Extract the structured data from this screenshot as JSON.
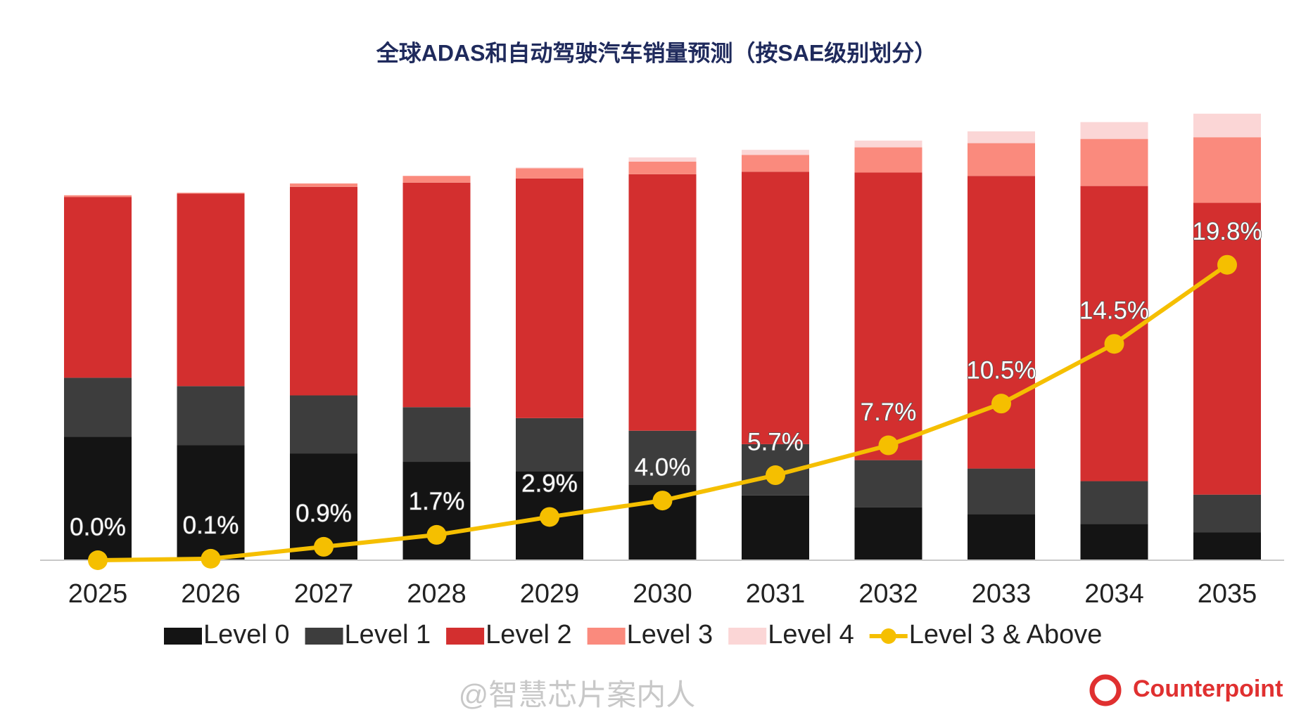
{
  "chart_data": {
    "type": "bar",
    "stacked": true,
    "title": "全球ADAS和自动驾驶汽车销量预测（按SAE级别划分）",
    "categories": [
      "2025",
      "2026",
      "2027",
      "2028",
      "2029",
      "2030",
      "2031",
      "2032",
      "2033",
      "2034",
      "2035"
    ],
    "series": [
      {
        "name": "Level 0",
        "color": "#141414",
        "values": [
          29.4,
          27.4,
          25.4,
          23.4,
          21.2,
          18,
          15.4,
          12.6,
          11,
          8.6,
          6.6
        ]
      },
      {
        "name": "Level 1",
        "color": "#3d3d3d",
        "values": [
          14,
          14,
          13.8,
          13,
          12.6,
          12.8,
          12.2,
          11.2,
          10.8,
          10.2,
          9
        ]
      },
      {
        "name": "Level 2",
        "color": "#d32f2f",
        "values": [
          43,
          45.8,
          49.6,
          53.4,
          57,
          61,
          64.8,
          68.4,
          69.6,
          70.2,
          69.4
        ]
      },
      {
        "name": "Level 3",
        "color": "#fa8a7d",
        "values": [
          0.4,
          0.2,
          0.8,
          1.6,
          2.4,
          3,
          4,
          6,
          7.8,
          11.2,
          15.6
        ]
      },
      {
        "name": "Level 4",
        "color": "#fbd6d6",
        "values": [
          0,
          0,
          0,
          0,
          0.2,
          1,
          1.2,
          1.6,
          2.8,
          4,
          5.6
        ]
      },
      {
        "name": "Level 3 & Above",
        "color": "#f5bf00",
        "type": "line",
        "axis": "y2",
        "values": [
          0,
          0.1,
          0.9,
          1.7,
          2.9,
          4.0,
          5.7,
          7.7,
          10.5,
          14.5,
          19.8
        ],
        "value_labels": [
          "0.0%",
          "0.1%",
          "0.9%",
          "1.7%",
          "2.9%",
          "4.0%",
          "5.7%",
          "7.7%",
          "10.5%",
          "14.5%",
          "19.8%"
        ]
      }
    ],
    "ylim": [
      0,
      110
    ],
    "y2lim": [
      0,
      31
    ],
    "legend": "bottom",
    "watermark": "@智慧芯片案内人",
    "logo": "Counterpoint"
  }
}
